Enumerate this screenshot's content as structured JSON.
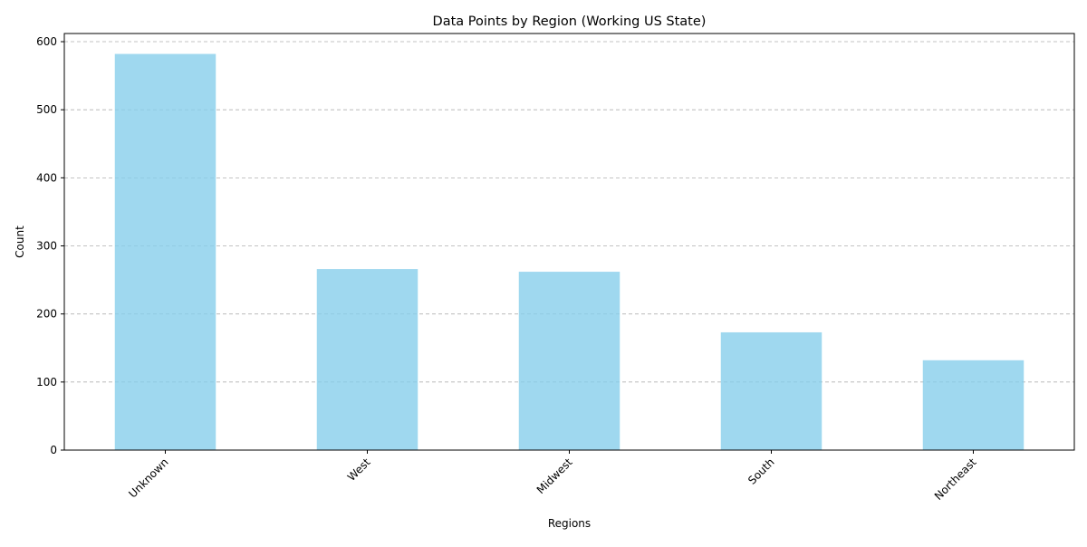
{
  "chart_data": {
    "type": "bar",
    "title": "Data Points by Region (Working US State)",
    "xlabel": "Regions",
    "ylabel": "Count",
    "categories": [
      "Unknown",
      "West",
      "Midwest",
      "South",
      "Northeast"
    ],
    "values": [
      582,
      266,
      262,
      173,
      132
    ],
    "ylim": [
      0,
      612
    ],
    "yticks": [
      0,
      100,
      200,
      300,
      400,
      500,
      600
    ],
    "grid": "y-axis dashed",
    "legend": "none",
    "bar_color": "#87CEEB"
  }
}
